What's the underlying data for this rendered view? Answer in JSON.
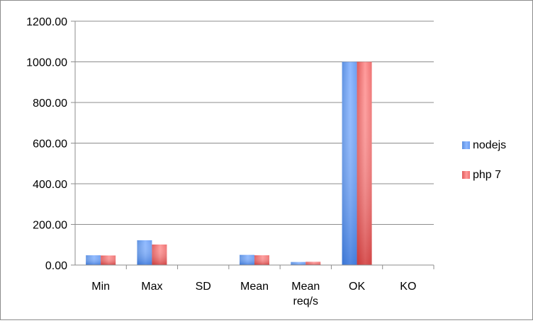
{
  "chart_data": {
    "type": "bar",
    "title": "",
    "xlabel": "",
    "ylabel": "",
    "categories": [
      "Min",
      "Max",
      "SD",
      "Mean",
      "Mean\nreq/s",
      "OK",
      "KO"
    ],
    "series": [
      {
        "name": "nodejs",
        "values": [
          48,
          122,
          0,
          50,
          15,
          1000,
          0
        ],
        "color": "#4f81bd"
      },
      {
        "name": "php 7",
        "values": [
          47,
          101,
          0,
          48,
          16,
          1000,
          0
        ],
        "color": "#c0504d"
      }
    ],
    "ylim": [
      0,
      1200
    ],
    "yticks": [
      0,
      200,
      400,
      600,
      800,
      1000,
      1200
    ],
    "ytick_format": "0.00",
    "grid": true,
    "legend": "right"
  }
}
